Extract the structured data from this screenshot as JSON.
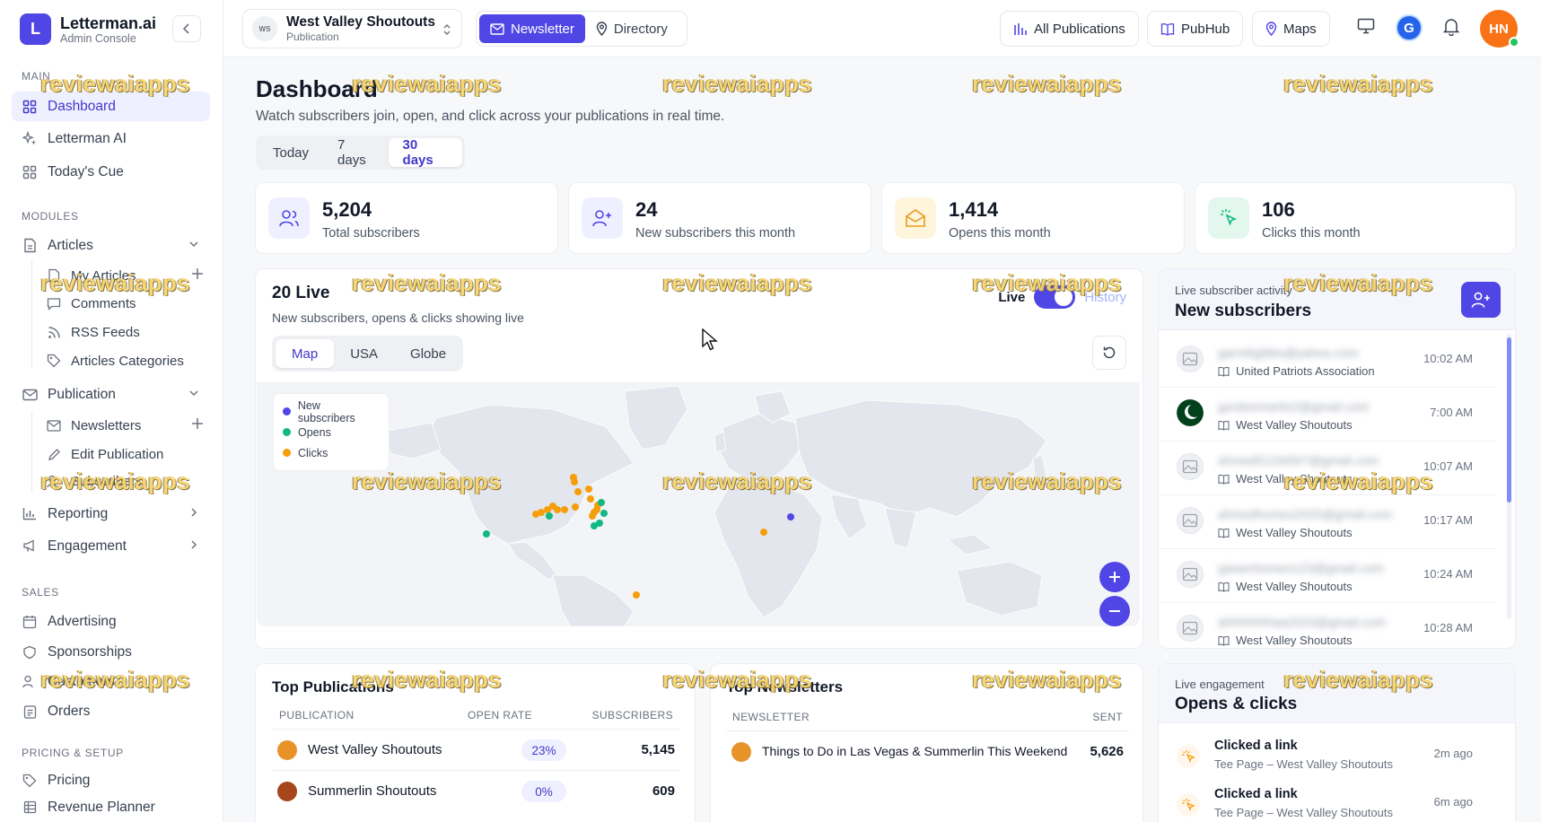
{
  "brand": {
    "logo_letter": "L",
    "name": "Letterman.ai",
    "subtitle": "Admin Console"
  },
  "sidebar": {
    "sections": {
      "main": "MAIN",
      "modules": "MODULES",
      "sales": "SALES",
      "pricing": "PRICING & SETUP"
    },
    "main_items": {
      "dashboard": "Dashboard",
      "letterman_ai": "Letterman AI",
      "todays_cue": "Today's Cue"
    },
    "articles": {
      "label": "Articles",
      "my_articles": "My Articles",
      "comments": "Comments",
      "rss_feeds": "RSS Feeds",
      "categories": "Articles Categories"
    },
    "publication": {
      "label": "Publication",
      "newsletters": "Newsletters",
      "edit_publication": "Edit Publication",
      "subscribers": "Subscribers"
    },
    "reporting": "Reporting",
    "engagement": "Engagement",
    "sales_items": {
      "advertising": "Advertising",
      "sponsorships": "Sponsorships",
      "customers": "Customers",
      "orders": "Orders"
    },
    "pricing_items": {
      "pricing": "Pricing",
      "revenue_planner": "Revenue Planner"
    }
  },
  "topbar": {
    "publication": {
      "initials": "WS",
      "name": "West Valley Shoutouts",
      "type": "Publication"
    },
    "mode_toggle": {
      "newsletter": "Newsletter",
      "directory": "Directory"
    },
    "all_publications": "All Publications",
    "pubhub": "PubHub",
    "maps": "Maps",
    "google_avatar": "G",
    "user_initials": "HN"
  },
  "dashboard": {
    "title": "Dashboard",
    "description": "Watch subscribers join, open, and click across your publications in real time.",
    "ranges": [
      "Today",
      "7 days",
      "30 days"
    ],
    "active_range": "30 days"
  },
  "stats": [
    {
      "value": "5,204",
      "label": "Total subscribers",
      "icon": "users-icon"
    },
    {
      "value": "24",
      "label": "New subscribers this month",
      "icon": "user-plus-icon"
    },
    {
      "value": "1,414",
      "label": "Opens this month",
      "icon": "envelope-open-icon"
    },
    {
      "value": "106",
      "label": "Clicks this month",
      "icon": "cursor-click-icon"
    }
  ],
  "live": {
    "title": "20 Live",
    "subtitle": "New subscribers, opens & clicks showing live",
    "live_label": "Live",
    "history_label": "History",
    "map_tabs": [
      "Map",
      "USA",
      "Globe"
    ],
    "legend": [
      {
        "label": "New subscribers",
        "color": "#4f46e5"
      },
      {
        "label": "Opens",
        "color": "#10b981"
      },
      {
        "label": "Clicks",
        "color": "#f59e0b"
      }
    ]
  },
  "live_subscribers": {
    "kicker": "Live subscriber activity",
    "title": "New subscribers",
    "rows": [
      {
        "email": "garrettgibbs@yahoo.com",
        "publication": "United Patriots Association",
        "time": "10:02 AM"
      },
      {
        "email": "gordonmartin2@gmail.com",
        "publication": "West Valley Shoutouts",
        "time": "7:00 AM"
      },
      {
        "email": "ahmedf1234567@gmail.com",
        "publication": "West Valley Shoutouts",
        "time": "10:07 AM"
      },
      {
        "email": "ahmedhomes2025@gmail.com",
        "publication": "West Valley Shoutouts",
        "time": "10:17 AM"
      },
      {
        "email": "gawenhomes123@gmail.com",
        "publication": "West Valley Shoutouts",
        "time": "10:24 AM"
      },
      {
        "email": "ahhhhhhhaa2024@gmail.com",
        "publication": "West Valley Shoutouts",
        "time": "10:28 AM"
      }
    ]
  },
  "top_publications": {
    "title": "Top Publications",
    "columns": [
      "PUBLICATION",
      "OPEN RATE",
      "SUBSCRIBERS"
    ],
    "rows": [
      {
        "name": "West Valley Shoutouts",
        "open_rate": "23%",
        "subscribers": "5,145",
        "color": "#e8932a"
      },
      {
        "name": "Summerlin Shoutouts",
        "open_rate": "0%",
        "subscribers": "609",
        "color": "#a8461b"
      }
    ]
  },
  "top_newsletters": {
    "title": "Top Newsletters",
    "columns": [
      "NEWSLETTER",
      "SENT"
    ],
    "rows": [
      {
        "name": "Things to Do in Las Vegas & Summerlin This Weekend",
        "sent": "5,626",
        "color": "#e8932a"
      }
    ]
  },
  "engagement": {
    "kicker": "Live engagement",
    "title": "Opens & clicks",
    "rows": [
      {
        "action": "Clicked a link",
        "detail": "Tee Page – West Valley Shoutouts",
        "time": "2m ago"
      },
      {
        "action": "Clicked a link",
        "detail": "Tee Page – West Valley Shoutouts",
        "time": "6m ago"
      }
    ]
  },
  "watermark": "reviewaiapps"
}
